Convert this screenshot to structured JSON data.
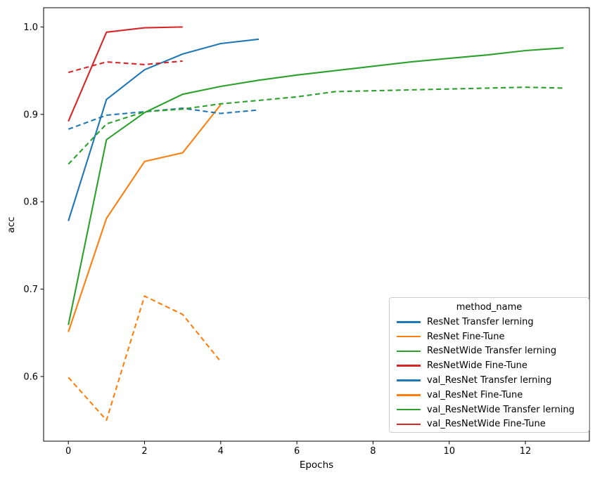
{
  "chart_data": {
    "type": "line",
    "title": "",
    "xlabel": "Epochs",
    "ylabel": "acc",
    "xlim": [
      -0.65,
      13.68
    ],
    "ylim": [
      0.526,
      1.022
    ],
    "grid": false,
    "x_ticks": [
      0,
      2,
      4,
      6,
      8,
      10,
      12
    ],
    "x_tick_labels": [
      "0",
      "2",
      "4",
      "6",
      "8",
      "10",
      "12"
    ],
    "y_ticks": [
      0.6,
      0.7,
      0.8,
      0.9,
      1.0
    ],
    "y_tick_labels": [
      "0.6",
      "0.7",
      "0.8",
      "0.9",
      "1.0"
    ],
    "legend_title": "method_name",
    "legend_position": "lower right",
    "axes_color": "#000000",
    "background_color": "#ffffff",
    "series": [
      {
        "name": "ResNet Transfer lerning",
        "color": "#1f77b4",
        "dash": "solid",
        "x": [
          0,
          1,
          2,
          3,
          4,
          5
        ],
        "values": [
          0.778,
          0.917,
          0.951,
          0.969,
          0.981,
          0.986
        ]
      },
      {
        "name": "ResNet Fine-Tune",
        "color": "#ff7f0e",
        "dash": "solid",
        "x": [
          0,
          1,
          2,
          3,
          4
        ],
        "values": [
          0.651,
          0.781,
          0.846,
          0.856,
          0.911
        ]
      },
      {
        "name": "ResNetWide Transfer lerning",
        "color": "#2ca02c",
        "dash": "solid",
        "x": [
          0,
          1,
          2,
          3,
          4,
          5,
          6,
          7,
          8,
          9,
          10,
          11,
          12,
          13
        ],
        "values": [
          0.659,
          0.871,
          0.902,
          0.923,
          0.932,
          0.939,
          0.945,
          0.95,
          0.955,
          0.96,
          0.964,
          0.968,
          0.973,
          0.976
        ]
      },
      {
        "name": "ResNetWide Fine-Tune",
        "color": "#d62728",
        "dash": "solid",
        "x": [
          0,
          1,
          2,
          3
        ],
        "values": [
          0.892,
          0.994,
          0.999,
          1.0
        ]
      },
      {
        "name": "val_ResNet Transfer lerning",
        "color": "#1f77b4",
        "dash": "dashed",
        "x": [
          0,
          1,
          2,
          3,
          4,
          5
        ],
        "values": [
          0.883,
          0.899,
          0.903,
          0.907,
          0.901,
          0.905
        ]
      },
      {
        "name": "val_ResNet Fine-Tune",
        "color": "#ff7f0e",
        "dash": "dashed",
        "x": [
          0,
          1,
          2,
          3,
          4
        ],
        "values": [
          0.599,
          0.55,
          0.692,
          0.671,
          0.617
        ]
      },
      {
        "name": "val_ResNetWide Transfer lerning",
        "color": "#2ca02c",
        "dash": "dashed",
        "x": [
          0,
          1,
          2,
          3,
          4,
          5,
          6,
          7,
          8,
          9,
          10,
          11,
          12,
          13
        ],
        "values": [
          0.843,
          0.889,
          0.903,
          0.906,
          0.912,
          0.916,
          0.92,
          0.926,
          0.927,
          0.928,
          0.929,
          0.93,
          0.931,
          0.93
        ]
      },
      {
        "name": "val_ResNetWide Fine-Tune",
        "color": "#d62728",
        "dash": "dashed",
        "x": [
          0,
          1,
          2,
          3
        ],
        "values": [
          0.948,
          0.96,
          0.957,
          0.961
        ]
      }
    ]
  }
}
